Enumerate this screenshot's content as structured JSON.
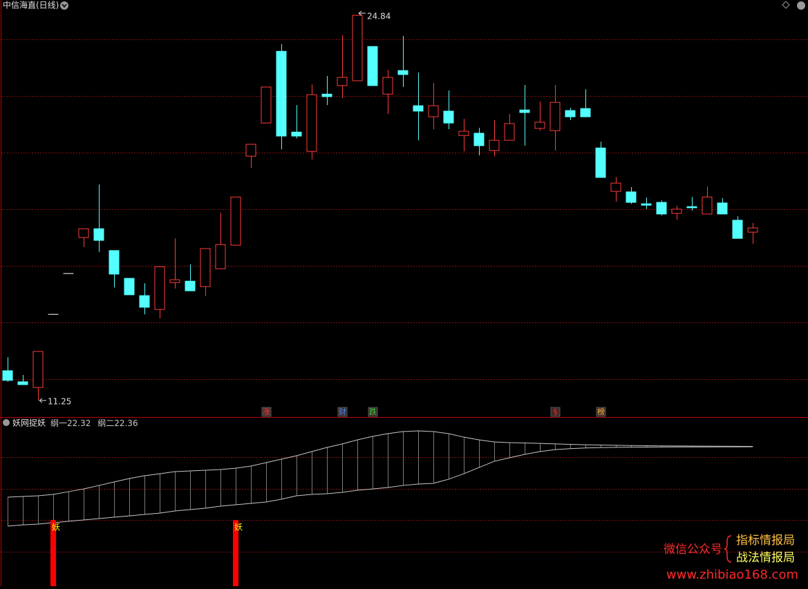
{
  "chart_data": [
    {
      "type": "candlestick",
      "title": "中信海直(日线)",
      "open": [
        12.3,
        11.91,
        11.71,
        14.29,
        15.73,
        17.0,
        17.31,
        16.54,
        15.56,
        14.95,
        14.46,
        15.41,
        15.46,
        15.27,
        15.9,
        16.73,
        19.87,
        21.04,
        23.57,
        20.72,
        20.04,
        22.06,
        22.36,
        22.53,
        23.74,
        22.06,
        22.89,
        21.65,
        21.26,
        21.46,
        20.6,
        20.68,
        20.07,
        20.43,
        21.5,
        20.85,
        20.77,
        21.48,
        21.55,
        20.16,
        18.63,
        18.61,
        18.19,
        18.24,
        17.85,
        18.09,
        17.83,
        18.22,
        17.61,
        17.19
      ],
      "high": [
        12.78,
        12.15,
        12.98,
        14.29,
        15.73,
        17.31,
        18.87,
        16.54,
        15.56,
        15.39,
        15.97,
        16.97,
        16.05,
        16.61,
        17.87,
        18.43,
        20.29,
        22.31,
        23.82,
        21.67,
        22.4,
        22.7,
        24.13,
        24.84,
        23.74,
        22.92,
        24.11,
        22.82,
        22.45,
        22.19,
        21.19,
        20.87,
        21.14,
        21.36,
        22.38,
        21.8,
        22.38,
        21.58,
        22.23,
        20.38,
        19.14,
        18.78,
        18.41,
        18.31,
        18.12,
        18.43,
        18.8,
        18.39,
        17.75,
        17.51
      ],
      "low": [
        11.91,
        11.81,
        11.25,
        14.29,
        15.73,
        16.66,
        16.49,
        15.24,
        14.98,
        14.29,
        14.15,
        15.2,
        15.12,
        14.93,
        15.88,
        16.73,
        19.46,
        21.04,
        20.11,
        20.5,
        19.75,
        21.67,
        21.92,
        22.53,
        22.36,
        21.36,
        22.31,
        20.43,
        20.82,
        20.82,
        20.04,
        19.9,
        19.87,
        20.43,
        20.24,
        20.77,
        20.07,
        21.14,
        21.26,
        19.12,
        18.26,
        18.19,
        18.0,
        17.78,
        17.63,
        17.95,
        17.83,
        17.83,
        16.97,
        16.78
      ],
      "close": [
        11.96,
        11.81,
        12.98,
        14.29,
        15.73,
        17.31,
        16.9,
        15.71,
        14.98,
        14.54,
        15.97,
        15.51,
        15.12,
        16.61,
        16.75,
        18.43,
        20.29,
        22.31,
        20.58,
        20.58,
        22.04,
        21.97,
        22.65,
        24.84,
        22.36,
        22.65,
        22.75,
        21.46,
        21.65,
        21.04,
        20.75,
        20.24,
        20.43,
        21.02,
        21.41,
        21.07,
        21.77,
        21.26,
        21.26,
        19.12,
        18.92,
        18.24,
        18.14,
        17.83,
        18.0,
        18.05,
        18.43,
        17.83,
        16.97,
        17.34
      ],
      "up_color": "#ff3c3c",
      "down_color": "#54ffff",
      "flat_color": "#ffffff",
      "ylim": [
        10.69,
        25.38
      ],
      "yticks": [
        12,
        14,
        16,
        18,
        20,
        22,
        24
      ],
      "grid": true,
      "events": [
        {
          "index": 17,
          "label": "涨",
          "color": "#ff4040"
        },
        {
          "index": 22,
          "label": "财",
          "color": "#4a8cff"
        },
        {
          "index": 24,
          "label": "跌",
          "color": "#3cd23c"
        },
        {
          "index": 36,
          "label": "§",
          "color": "#ff2020"
        },
        {
          "index": 39,
          "label": "榜",
          "color": "#ffb040"
        }
      ]
    },
    {
      "type": "line",
      "title": "妖网捉妖",
      "series": [
        {
          "name": "纲一",
          "color": "#c8c8c8",
          "values": [
            12.23,
            12.4,
            12.49,
            12.67,
            12.84,
            13.02,
            13.19,
            13.37,
            13.54,
            13.72,
            13.89,
            14.16,
            14.33,
            14.51,
            14.77,
            14.95,
            15.12,
            15.3,
            15.65,
            16.09,
            16.26,
            16.35,
            16.53,
            16.79,
            16.96,
            17.14,
            17.4,
            17.58,
            17.67,
            18.19,
            18.89,
            19.68,
            20.47,
            20.91,
            21.35,
            21.7,
            21.95,
            22.08,
            22.16,
            22.21,
            22.24,
            22.26,
            22.27,
            22.28,
            22.29,
            22.3,
            22.3,
            22.31,
            22.31,
            22.32
          ]
        },
        {
          "name": "纲二",
          "color": "#c8c8c8",
          "values": [
            15.91,
            16.0,
            16.09,
            16.26,
            16.61,
            16.96,
            17.4,
            17.84,
            18.28,
            18.63,
            18.89,
            19.16,
            19.25,
            19.33,
            19.42,
            19.6,
            19.86,
            20.3,
            20.74,
            21.18,
            21.7,
            22.23,
            22.67,
            23.19,
            23.63,
            23.98,
            24.25,
            24.33,
            24.25,
            23.98,
            23.54,
            23.19,
            22.93,
            22.84,
            22.8,
            22.74,
            22.68,
            22.62,
            22.57,
            22.53,
            22.5,
            22.47,
            22.45,
            22.43,
            22.41,
            22.4,
            22.39,
            22.38,
            22.37,
            22.36
          ]
        }
      ],
      "fill_between": true,
      "ylim": [
        4.6,
        26
      ],
      "yticks": [
        9,
        13,
        17,
        21
      ],
      "grid": true,
      "signals": {
        "label": "妖",
        "color": "#ff0000",
        "label_color": "#ffff00",
        "values": [
          null,
          null,
          null,
          13,
          null,
          null,
          null,
          null,
          null,
          null,
          null,
          null,
          null,
          null,
          null,
          13,
          null,
          null,
          null,
          null,
          null,
          null,
          null,
          null,
          null,
          null,
          null,
          null,
          null,
          null,
          null,
          null,
          null,
          null,
          null,
          null,
          null,
          null,
          null,
          null,
          null,
          null,
          null,
          null,
          null,
          null,
          null,
          null,
          null,
          null
        ]
      }
    }
  ],
  "watermark": {
    "lines": [
      "微信公众号",
      "指标情报局",
      "战法情报局",
      "www.zhibiao168.com"
    ]
  }
}
